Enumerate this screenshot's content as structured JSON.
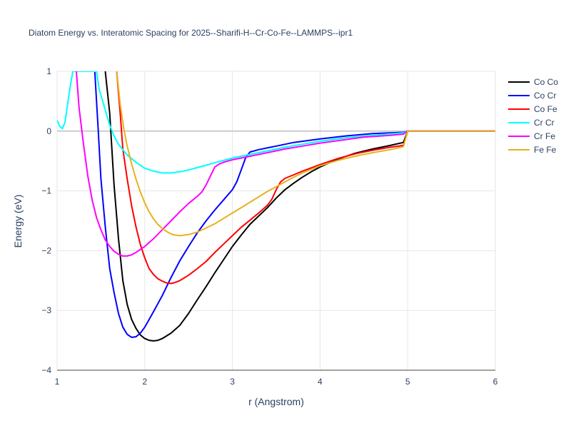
{
  "chart_data": {
    "type": "line",
    "title": "Diatom Energy vs. Interatomic Spacing for 2025--Sharifi-H--Cr-Co-Fe--LAMMPS--ipr1",
    "xlabel": "r (Angstrom)",
    "ylabel": "Energy (eV)",
    "xlim": [
      1,
      6
    ],
    "ylim": [
      -4,
      1
    ],
    "x_ticks": [
      "1",
      "2",
      "3",
      "4",
      "5",
      "6"
    ],
    "y_ticks": [
      "1",
      "0",
      "−1",
      "−2",
      "−3",
      "−4"
    ],
    "grid": true,
    "legend_position": "top-right",
    "series": [
      {
        "name": "Co Co",
        "color": "#000000",
        "points": [
          [
            1.55,
            1.0
          ],
          [
            1.6,
            0.3
          ],
          [
            1.65,
            -0.9
          ],
          [
            1.7,
            -1.8
          ],
          [
            1.75,
            -2.5
          ],
          [
            1.8,
            -2.9
          ],
          [
            1.85,
            -3.15
          ],
          [
            1.9,
            -3.3
          ],
          [
            1.95,
            -3.41
          ],
          [
            2.0,
            -3.47
          ],
          [
            2.05,
            -3.5
          ],
          [
            2.1,
            -3.51
          ],
          [
            2.15,
            -3.5
          ],
          [
            2.2,
            -3.47
          ],
          [
            2.3,
            -3.38
          ],
          [
            2.4,
            -3.25
          ],
          [
            2.5,
            -3.05
          ],
          [
            2.6,
            -2.82
          ],
          [
            2.7,
            -2.6
          ],
          [
            2.8,
            -2.37
          ],
          [
            2.9,
            -2.15
          ],
          [
            3.0,
            -1.93
          ],
          [
            3.1,
            -1.74
          ],
          [
            3.2,
            -1.56
          ],
          [
            3.3,
            -1.42
          ],
          [
            3.4,
            -1.28
          ],
          [
            3.5,
            -1.12
          ],
          [
            3.6,
            -0.98
          ],
          [
            3.7,
            -0.87
          ],
          [
            3.8,
            -0.77
          ],
          [
            3.9,
            -0.68
          ],
          [
            4.0,
            -0.6
          ],
          [
            4.2,
            -0.47
          ],
          [
            4.4,
            -0.37
          ],
          [
            4.6,
            -0.3
          ],
          [
            4.8,
            -0.24
          ],
          [
            4.95,
            -0.19
          ],
          [
            5.0,
            0.0
          ],
          [
            6.0,
            0.0
          ]
        ]
      },
      {
        "name": "Co Cr",
        "color": "#0000ff",
        "points": [
          [
            1.43,
            1.0
          ],
          [
            1.47,
            0.0
          ],
          [
            1.5,
            -0.8
          ],
          [
            1.55,
            -1.6
          ],
          [
            1.6,
            -2.3
          ],
          [
            1.65,
            -2.7
          ],
          [
            1.7,
            -3.05
          ],
          [
            1.75,
            -3.28
          ],
          [
            1.8,
            -3.4
          ],
          [
            1.85,
            -3.45
          ],
          [
            1.9,
            -3.44
          ],
          [
            1.95,
            -3.38
          ],
          [
            2.0,
            -3.28
          ],
          [
            2.1,
            -3.02
          ],
          [
            2.2,
            -2.75
          ],
          [
            2.3,
            -2.45
          ],
          [
            2.4,
            -2.17
          ],
          [
            2.5,
            -1.93
          ],
          [
            2.6,
            -1.7
          ],
          [
            2.7,
            -1.5
          ],
          [
            2.8,
            -1.32
          ],
          [
            2.9,
            -1.15
          ],
          [
            3.0,
            -0.98
          ],
          [
            3.05,
            -0.85
          ],
          [
            3.1,
            -0.65
          ],
          [
            3.15,
            -0.45
          ],
          [
            3.2,
            -0.35
          ],
          [
            3.3,
            -0.31
          ],
          [
            3.5,
            -0.25
          ],
          [
            3.7,
            -0.19
          ],
          [
            4.0,
            -0.13
          ],
          [
            4.3,
            -0.08
          ],
          [
            4.6,
            -0.04
          ],
          [
            4.95,
            -0.02
          ],
          [
            5.0,
            0.0
          ],
          [
            6.0,
            0.0
          ]
        ]
      },
      {
        "name": "Co Fe",
        "color": "#ff0000",
        "points": [
          [
            1.68,
            1.0
          ],
          [
            1.72,
            0.3
          ],
          [
            1.75,
            -0.3
          ],
          [
            1.8,
            -0.8
          ],
          [
            1.85,
            -1.25
          ],
          [
            1.9,
            -1.6
          ],
          [
            1.95,
            -1.9
          ],
          [
            2.0,
            -2.12
          ],
          [
            2.05,
            -2.3
          ],
          [
            2.1,
            -2.4
          ],
          [
            2.15,
            -2.47
          ],
          [
            2.2,
            -2.51
          ],
          [
            2.25,
            -2.54
          ],
          [
            2.3,
            -2.55
          ],
          [
            2.35,
            -2.53
          ],
          [
            2.4,
            -2.5
          ],
          [
            2.5,
            -2.41
          ],
          [
            2.6,
            -2.3
          ],
          [
            2.7,
            -2.18
          ],
          [
            2.8,
            -2.03
          ],
          [
            2.9,
            -1.89
          ],
          [
            3.0,
            -1.75
          ],
          [
            3.1,
            -1.61
          ],
          [
            3.2,
            -1.49
          ],
          [
            3.3,
            -1.37
          ],
          [
            3.4,
            -1.24
          ],
          [
            3.45,
            -1.14
          ],
          [
            3.5,
            -0.98
          ],
          [
            3.55,
            -0.85
          ],
          [
            3.6,
            -0.79
          ],
          [
            3.7,
            -0.73
          ],
          [
            3.8,
            -0.67
          ],
          [
            4.0,
            -0.56
          ],
          [
            4.2,
            -0.46
          ],
          [
            4.4,
            -0.38
          ],
          [
            4.6,
            -0.32
          ],
          [
            4.8,
            -0.27
          ],
          [
            4.95,
            -0.24
          ],
          [
            5.0,
            0.0
          ],
          [
            6.0,
            0.0
          ]
        ]
      },
      {
        "name": "Cr Cr",
        "color": "#00ffff",
        "points": [
          [
            1.0,
            0.18
          ],
          [
            1.03,
            0.08
          ],
          [
            1.06,
            0.04
          ],
          [
            1.09,
            0.15
          ],
          [
            1.12,
            0.45
          ],
          [
            1.15,
            0.75
          ],
          [
            1.18,
            1.0
          ],
          [
            1.45,
            1.0
          ],
          [
            1.48,
            0.7
          ],
          [
            1.52,
            0.5
          ],
          [
            1.56,
            0.3
          ],
          [
            1.6,
            0.1
          ],
          [
            1.65,
            -0.08
          ],
          [
            1.7,
            -0.22
          ],
          [
            1.8,
            -0.4
          ],
          [
            1.9,
            -0.52
          ],
          [
            2.0,
            -0.62
          ],
          [
            2.1,
            -0.67
          ],
          [
            2.2,
            -0.7
          ],
          [
            2.3,
            -0.7
          ],
          [
            2.4,
            -0.68
          ],
          [
            2.5,
            -0.65
          ],
          [
            2.6,
            -0.61
          ],
          [
            2.7,
            -0.57
          ],
          [
            2.8,
            -0.53
          ],
          [
            3.0,
            -0.45
          ],
          [
            3.2,
            -0.39
          ],
          [
            3.4,
            -0.33
          ],
          [
            3.6,
            -0.27
          ],
          [
            3.8,
            -0.22
          ],
          [
            4.0,
            -0.17
          ],
          [
            4.3,
            -0.11
          ],
          [
            4.6,
            -0.07
          ],
          [
            4.95,
            -0.03
          ],
          [
            5.0,
            0.0
          ],
          [
            6.0,
            0.0
          ]
        ]
      },
      {
        "name": "Cr Fe",
        "color": "#ff00ff",
        "points": [
          [
            1.22,
            1.0
          ],
          [
            1.25,
            0.4
          ],
          [
            1.3,
            -0.2
          ],
          [
            1.35,
            -0.75
          ],
          [
            1.4,
            -1.15
          ],
          [
            1.45,
            -1.45
          ],
          [
            1.5,
            -1.65
          ],
          [
            1.55,
            -1.82
          ],
          [
            1.6,
            -1.93
          ],
          [
            1.65,
            -2.01
          ],
          [
            1.7,
            -2.06
          ],
          [
            1.75,
            -2.09
          ],
          [
            1.8,
            -2.09
          ],
          [
            1.85,
            -2.07
          ],
          [
            1.9,
            -2.03
          ],
          [
            2.0,
            -1.93
          ],
          [
            2.1,
            -1.8
          ],
          [
            2.2,
            -1.65
          ],
          [
            2.3,
            -1.5
          ],
          [
            2.4,
            -1.35
          ],
          [
            2.5,
            -1.21
          ],
          [
            2.6,
            -1.09
          ],
          [
            2.65,
            -1.02
          ],
          [
            2.7,
            -0.9
          ],
          [
            2.75,
            -0.75
          ],
          [
            2.8,
            -0.6
          ],
          [
            2.85,
            -0.55
          ],
          [
            2.9,
            -0.52
          ],
          [
            3.0,
            -0.48
          ],
          [
            3.2,
            -0.42
          ],
          [
            3.4,
            -0.36
          ],
          [
            3.6,
            -0.3
          ],
          [
            3.8,
            -0.25
          ],
          [
            4.0,
            -0.2
          ],
          [
            4.2,
            -0.16
          ],
          [
            4.5,
            -0.1
          ],
          [
            4.8,
            -0.07
          ],
          [
            4.95,
            -0.05
          ],
          [
            5.0,
            0.0
          ],
          [
            6.0,
            0.0
          ]
        ]
      },
      {
        "name": "Fe Fe",
        "color": "#e6b21e",
        "points": [
          [
            1.68,
            1.0
          ],
          [
            1.72,
            0.45
          ],
          [
            1.76,
            0.05
          ],
          [
            1.8,
            -0.25
          ],
          [
            1.85,
            -0.55
          ],
          [
            1.9,
            -0.8
          ],
          [
            1.95,
            -1.02
          ],
          [
            2.0,
            -1.2
          ],
          [
            2.05,
            -1.35
          ],
          [
            2.1,
            -1.47
          ],
          [
            2.15,
            -1.56
          ],
          [
            2.2,
            -1.63
          ],
          [
            2.25,
            -1.68
          ],
          [
            2.3,
            -1.72
          ],
          [
            2.35,
            -1.74
          ],
          [
            2.4,
            -1.75
          ],
          [
            2.5,
            -1.73
          ],
          [
            2.6,
            -1.69
          ],
          [
            2.7,
            -1.62
          ],
          [
            2.8,
            -1.55
          ],
          [
            2.9,
            -1.46
          ],
          [
            3.0,
            -1.37
          ],
          [
            3.1,
            -1.28
          ],
          [
            3.2,
            -1.19
          ],
          [
            3.3,
            -1.1
          ],
          [
            3.4,
            -1.01
          ],
          [
            3.5,
            -0.93
          ],
          [
            3.6,
            -0.85
          ],
          [
            3.7,
            -0.77
          ],
          [
            3.8,
            -0.7
          ],
          [
            4.0,
            -0.58
          ],
          [
            4.2,
            -0.49
          ],
          [
            4.4,
            -0.42
          ],
          [
            4.6,
            -0.36
          ],
          [
            4.8,
            -0.31
          ],
          [
            4.95,
            -0.26
          ],
          [
            5.0,
            0.0
          ],
          [
            6.0,
            0.0
          ]
        ]
      }
    ]
  }
}
